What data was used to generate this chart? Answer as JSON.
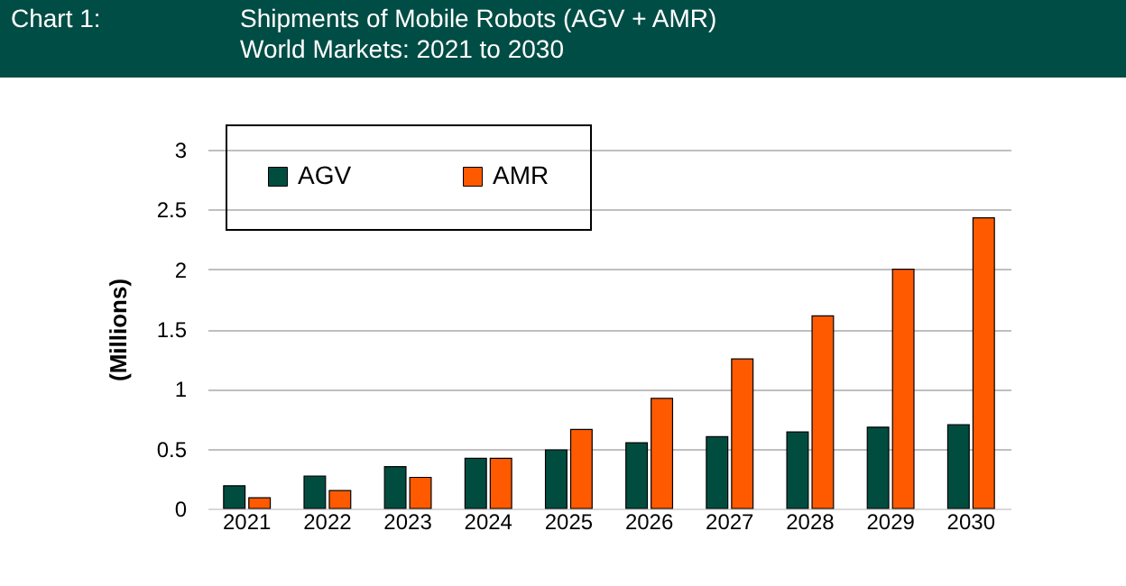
{
  "chart_data": {
    "type": "bar",
    "title": "Shipments of Mobile Robots (AGV + AMR)",
    "subtitle": "World Markets: 2021 to 2030",
    "annotations": [
      "Chart 1:"
    ],
    "ylabel": "(Millions)",
    "categories": [
      "2021",
      "2022",
      "2023",
      "2024",
      "2025",
      "2026",
      "2027",
      "2028",
      "2029",
      "2030"
    ],
    "series": [
      {
        "name": "AGV",
        "color": "#004d40",
        "values": [
          0.19,
          0.27,
          0.35,
          0.42,
          0.49,
          0.55,
          0.6,
          0.64,
          0.68,
          0.7
        ]
      },
      {
        "name": "AMR",
        "color": "#ff5a00",
        "values": [
          0.09,
          0.15,
          0.26,
          0.42,
          0.66,
          0.92,
          1.25,
          1.61,
          2.0,
          2.43
        ]
      }
    ],
    "ylim": [
      0,
      3
    ],
    "yticks": [
      0,
      0.5,
      1,
      1.5,
      2,
      2.5,
      3
    ],
    "grid": "y",
    "legend": "top left"
  }
}
